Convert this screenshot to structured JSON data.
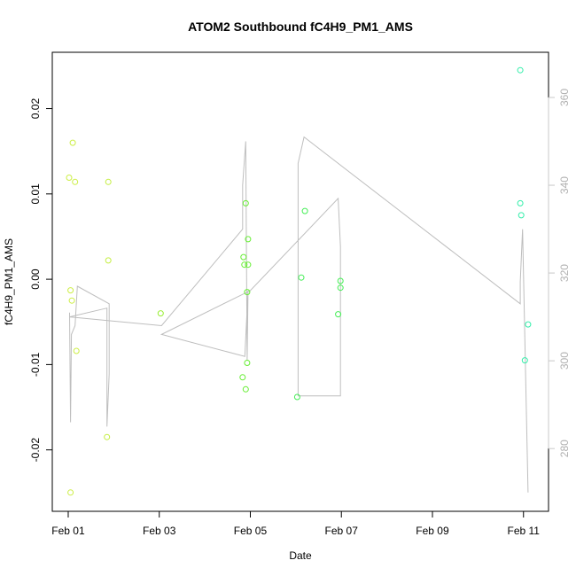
{
  "chart_data": {
    "type": "scatter",
    "title": "ATOM2 Southbound fC4H9_PM1_AMS",
    "xlabel": "Date",
    "ylabel": "fC4H9_PM1_AMS",
    "y2label": "",
    "x_unit": "days (0 = Feb 01)",
    "xlim": [
      -0.35,
      10.55
    ],
    "ylim": [
      -0.0272,
      0.0266
    ],
    "y2lim": [
      265.7,
      370.3
    ],
    "x_ticks": [
      {
        "value": 0,
        "label": "Feb 01"
      },
      {
        "value": 2,
        "label": "Feb 03"
      },
      {
        "value": 4,
        "label": "Feb 05"
      },
      {
        "value": 6,
        "label": "Feb 07"
      },
      {
        "value": 8,
        "label": "Feb 09"
      },
      {
        "value": 10,
        "label": "Feb 11"
      }
    ],
    "y_ticks": [
      {
        "value": -0.02,
        "label": "-0.02"
      },
      {
        "value": -0.01,
        "label": "-0.01"
      },
      {
        "value": 0.0,
        "label": "0.00"
      },
      {
        "value": 0.01,
        "label": "0.01"
      },
      {
        "value": 0.02,
        "label": "0.02"
      }
    ],
    "y2_ticks": [
      {
        "value": 280,
        "label": "280"
      },
      {
        "value": 300,
        "label": "300"
      },
      {
        "value": 320,
        "label": "320"
      },
      {
        "value": 340,
        "label": "340"
      },
      {
        "value": 360,
        "label": "360"
      }
    ],
    "points": [
      {
        "x": 0.02,
        "y": 0.0119,
        "color": "#ccee44"
      },
      {
        "x": 0.1,
        "y": 0.016,
        "color": "#ccee44"
      },
      {
        "x": 0.15,
        "y": 0.0114,
        "color": "#ccee44"
      },
      {
        "x": 0.05,
        "y": -0.0013,
        "color": "#ccee44"
      },
      {
        "x": 0.08,
        "y": -0.0025,
        "color": "#ccee44"
      },
      {
        "x": 0.18,
        "y": -0.0084,
        "color": "#ccee44"
      },
      {
        "x": 0.05,
        "y": -0.025,
        "color": "#ccee44"
      },
      {
        "x": 0.88,
        "y": 0.0114,
        "color": "#c4ee40"
      },
      {
        "x": 0.88,
        "y": 0.0022,
        "color": "#c4ee40"
      },
      {
        "x": 0.85,
        "y": -0.0185,
        "color": "#c4ee40"
      },
      {
        "x": 2.03,
        "y": -0.004,
        "color": "#99ee33"
      },
      {
        "x": 3.9,
        "y": 0.0089,
        "color": "#66ee33"
      },
      {
        "x": 3.95,
        "y": 0.0047,
        "color": "#66ee33"
      },
      {
        "x": 3.85,
        "y": 0.0026,
        "color": "#66ee33"
      },
      {
        "x": 3.87,
        "y": 0.0017,
        "color": "#66ee33"
      },
      {
        "x": 3.95,
        "y": 0.0017,
        "color": "#66ee33"
      },
      {
        "x": 3.93,
        "y": -0.0015,
        "color": "#66ee33"
      },
      {
        "x": 3.93,
        "y": -0.0098,
        "color": "#66ee33"
      },
      {
        "x": 3.83,
        "y": -0.0115,
        "color": "#66ee33"
      },
      {
        "x": 3.9,
        "y": -0.0129,
        "color": "#66ee33"
      },
      {
        "x": 5.2,
        "y": 0.008,
        "color": "#44ee55"
      },
      {
        "x": 5.12,
        "y": 0.0002,
        "color": "#44ee55"
      },
      {
        "x": 5.03,
        "y": -0.0138,
        "color": "#44ee55"
      },
      {
        "x": 5.98,
        "y": -0.0002,
        "color": "#44ee55"
      },
      {
        "x": 5.98,
        "y": -0.001,
        "color": "#44ee55"
      },
      {
        "x": 5.93,
        "y": -0.0041,
        "color": "#44ee55"
      },
      {
        "x": 9.93,
        "y": 0.0245,
        "color": "#33eeaa"
      },
      {
        "x": 9.93,
        "y": 0.0089,
        "color": "#33eeaa"
      },
      {
        "x": 9.95,
        "y": 0.0075,
        "color": "#33eeaa"
      },
      {
        "x": 10.1,
        "y": -0.0053,
        "color": "#33eeaa"
      },
      {
        "x": 10.03,
        "y": -0.0095,
        "color": "#33eeaa"
      }
    ],
    "line_series": {
      "axis": "right",
      "color": "#bebebe",
      "points": [
        {
          "x": 0.03,
          "y": 311
        },
        {
          "x": 0.05,
          "y": 286
        },
        {
          "x": 0.07,
          "y": 306
        },
        {
          "x": 0.15,
          "y": 308
        },
        {
          "x": 0.2,
          "y": 317
        },
        {
          "x": 0.9,
          "y": 313
        },
        {
          "x": 0.9,
          "y": 297
        },
        {
          "x": 0.85,
          "y": 285
        },
        {
          "x": 0.85,
          "y": 312
        },
        {
          "x": 0.03,
          "y": 310
        },
        {
          "x": 2.05,
          "y": 308
        },
        {
          "x": 3.83,
          "y": 330
        },
        {
          "x": 3.83,
          "y": 340
        },
        {
          "x": 3.9,
          "y": 350
        },
        {
          "x": 3.93,
          "y": 300
        },
        {
          "x": 3.95,
          "y": 316
        },
        {
          "x": 3.88,
          "y": 301
        },
        {
          "x": 2.05,
          "y": 306
        },
        {
          "x": 4.0,
          "y": 316
        },
        {
          "x": 5.93,
          "y": 337
        },
        {
          "x": 5.98,
          "y": 326
        },
        {
          "x": 5.98,
          "y": 292
        },
        {
          "x": 5.05,
          "y": 292
        },
        {
          "x": 5.05,
          "y": 345
        },
        {
          "x": 5.18,
          "y": 351
        },
        {
          "x": 9.93,
          "y": 313
        },
        {
          "x": 9.93,
          "y": 318
        },
        {
          "x": 9.98,
          "y": 330
        },
        {
          "x": 10.1,
          "y": 270
        }
      ]
    }
  }
}
